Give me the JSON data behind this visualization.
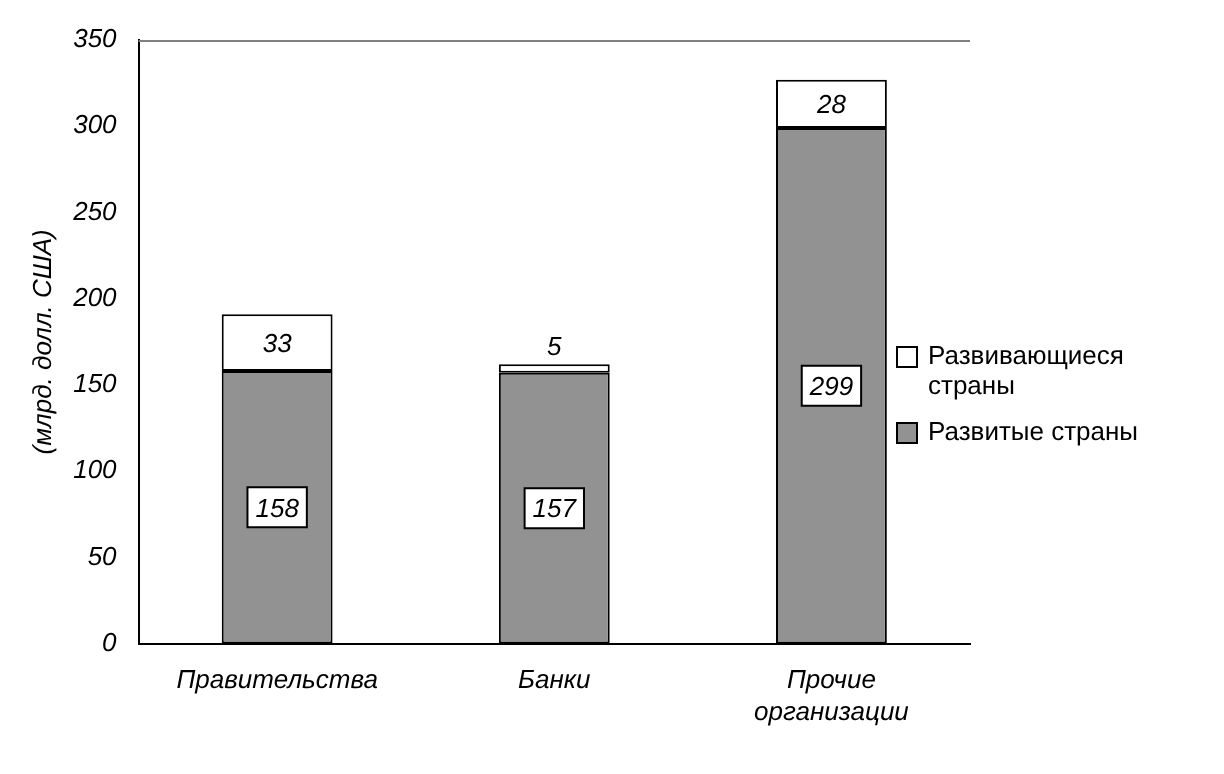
{
  "chart_data": {
    "type": "bar",
    "stacked": true,
    "ylabel": "(млрд. долл. США)",
    "categories": [
      "Правительства",
      "Банки",
      "Прочие организации"
    ],
    "series": [
      {
        "name": "Развитые страны",
        "color": "#929292",
        "values": [
          158,
          157,
          299
        ]
      },
      {
        "name": "Развивающиеся страны",
        "color": "#ffffff",
        "values": [
          33,
          5,
          28
        ]
      }
    ],
    "ylim": [
      0,
      350
    ],
    "yticks": [
      0,
      50,
      100,
      150,
      200,
      250,
      300,
      350
    ],
    "grid": false,
    "legend": "right",
    "data_labels": true
  }
}
